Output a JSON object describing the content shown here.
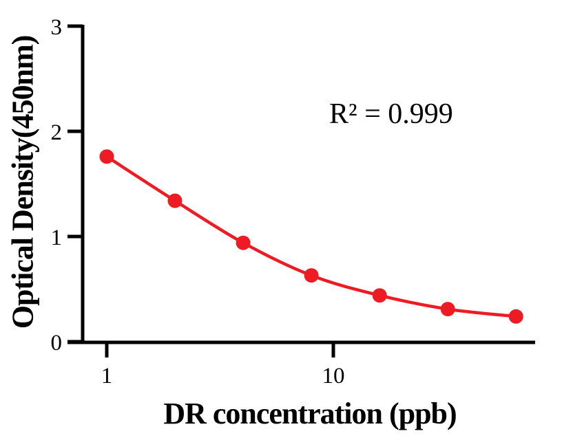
{
  "figure": {
    "background": "#FFFFFF",
    "axis_color": "#000000"
  },
  "labels": {
    "y_axis_title": "Optical Density(450nm)",
    "x_axis_title": "DR concentration (ppb)",
    "r_squared": "R² = 0.999"
  },
  "chart_data": {
    "type": "scatter",
    "title": "",
    "xlabel": "DR concentration (ppb)",
    "ylabel": "Optical Density(450nm)",
    "x_scale": "log10",
    "x": [
      1,
      2,
      4,
      8,
      16,
      32,
      64
    ],
    "y": [
      1.76,
      1.34,
      0.94,
      0.63,
      0.44,
      0.31,
      0.24
    ],
    "x_tick_labels": [
      "1",
      "10"
    ],
    "x_tick_values": [
      1,
      10
    ],
    "y_tick_labels": [
      "0",
      "1",
      "2",
      "3"
    ],
    "y_tick_values": [
      0,
      1,
      2,
      3
    ],
    "ylim": [
      0,
      3
    ],
    "xlim_approx": [
      0.67,
      78
    ],
    "grid": false,
    "legend_position": "none",
    "annotation": "R² = 0.999",
    "curve": "smooth-fit-line-through-points",
    "marker_color": "#ED1C24",
    "line_color": "#ED1C24",
    "axis_color": "#000000"
  }
}
